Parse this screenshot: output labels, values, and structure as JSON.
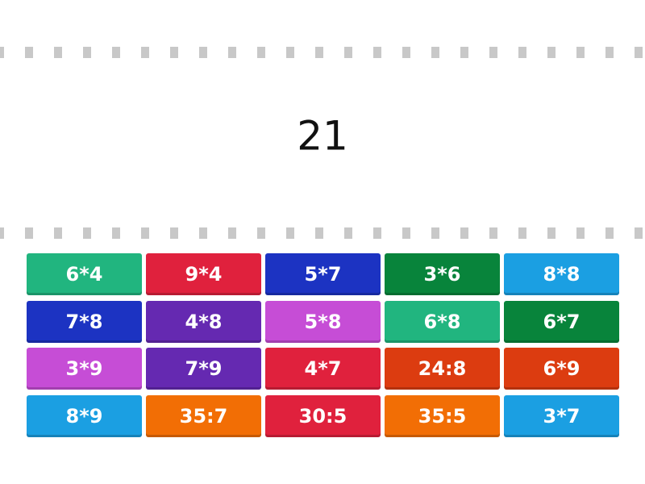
{
  "prompt": "21",
  "tiles": [
    {
      "label": "6*4",
      "color": "#21b57f"
    },
    {
      "label": "9*4",
      "color": "#e0213d"
    },
    {
      "label": "5*7",
      "color": "#1c33c2"
    },
    {
      "label": "3*6",
      "color": "#08843b"
    },
    {
      "label": "8*8",
      "color": "#1b9fe2"
    },
    {
      "label": "7*8",
      "color": "#1c33c2"
    },
    {
      "label": "4*8",
      "color": "#6529b1"
    },
    {
      "label": "5*8",
      "color": "#c64dd6"
    },
    {
      "label": "6*8",
      "color": "#21b57f"
    },
    {
      "label": "6*7",
      "color": "#08843b"
    },
    {
      "label": "3*9",
      "color": "#c64dd6"
    },
    {
      "label": "7*9",
      "color": "#6529b1"
    },
    {
      "label": "4*7",
      "color": "#e0213d"
    },
    {
      "label": "24:8",
      "color": "#dc3c10"
    },
    {
      "label": "6*9",
      "color": "#dc3c10"
    },
    {
      "label": "8*9",
      "color": "#1b9fe2"
    },
    {
      "label": "35:7",
      "color": "#f26e05"
    },
    {
      "label": "30:5",
      "color": "#e0213d"
    },
    {
      "label": "35:5",
      "color": "#f26e05"
    },
    {
      "label": "3*7",
      "color": "#1b9fe2"
    }
  ]
}
